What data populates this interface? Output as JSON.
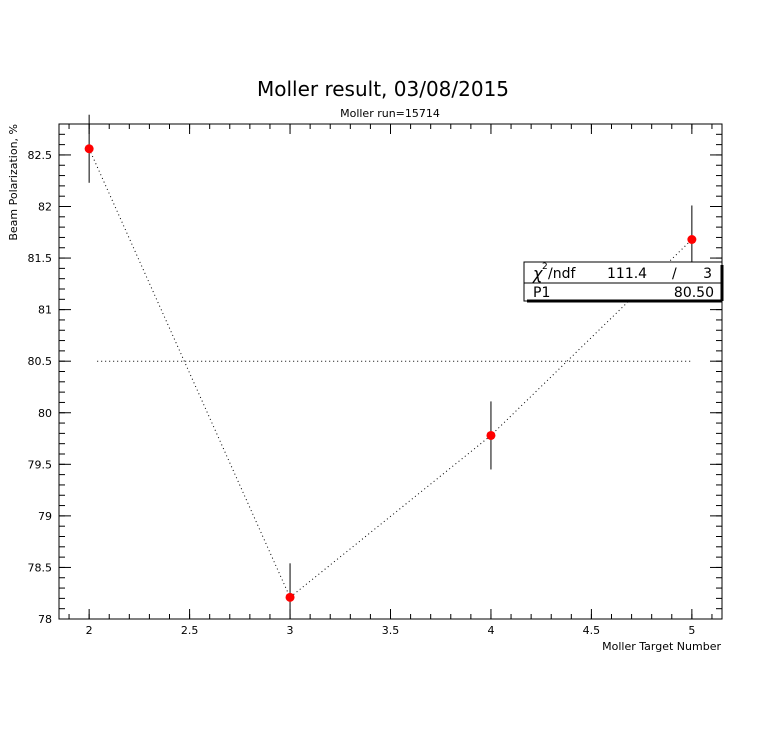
{
  "chart_data": {
    "type": "scatter",
    "title": "Moller result, 03/08/2015",
    "subtitle": "Moller run=15714",
    "xlabel": "Moller Target Number",
    "ylabel": "Beam Polarization, %",
    "xlim": [
      1.85,
      5.15
    ],
    "ylim": [
      78,
      82.8
    ],
    "xticks": [
      2,
      2.5,
      3,
      3.5,
      4,
      4.5,
      5
    ],
    "xtick_labels": [
      "2",
      "2.5",
      "3",
      "3.5",
      "4",
      "4.5",
      "5"
    ],
    "yticks": [
      78,
      78.5,
      79,
      79.5,
      80,
      80.5,
      81,
      81.5,
      82,
      82.5
    ],
    "ytick_labels": [
      "78",
      "78.5",
      "79",
      "79.5",
      "80",
      "80.5",
      "81",
      "81.5",
      "82",
      "82.5"
    ],
    "series": [
      {
        "x": [
          2,
          3,
          4,
          5
        ],
        "y": [
          82.56,
          78.21,
          79.78,
          81.68
        ],
        "yerr": [
          0.33,
          0.33,
          0.33,
          0.33
        ],
        "marker_color": "#ff0000",
        "connected": true,
        "line_style": "dotted"
      }
    ],
    "fit": {
      "type": "constant",
      "value": 80.5,
      "x_range": [
        2.04,
        5.0
      ],
      "line_style": "dotted"
    },
    "stats_box": {
      "row1_label": "/ndf",
      "row1_chi": "χ",
      "row1_sup": "2",
      "row1_value": "111.4",
      "row1_sep": "/",
      "row1_ndf": "3",
      "row2_label": "P1",
      "row2_value": "80.50"
    },
    "grid": false
  }
}
